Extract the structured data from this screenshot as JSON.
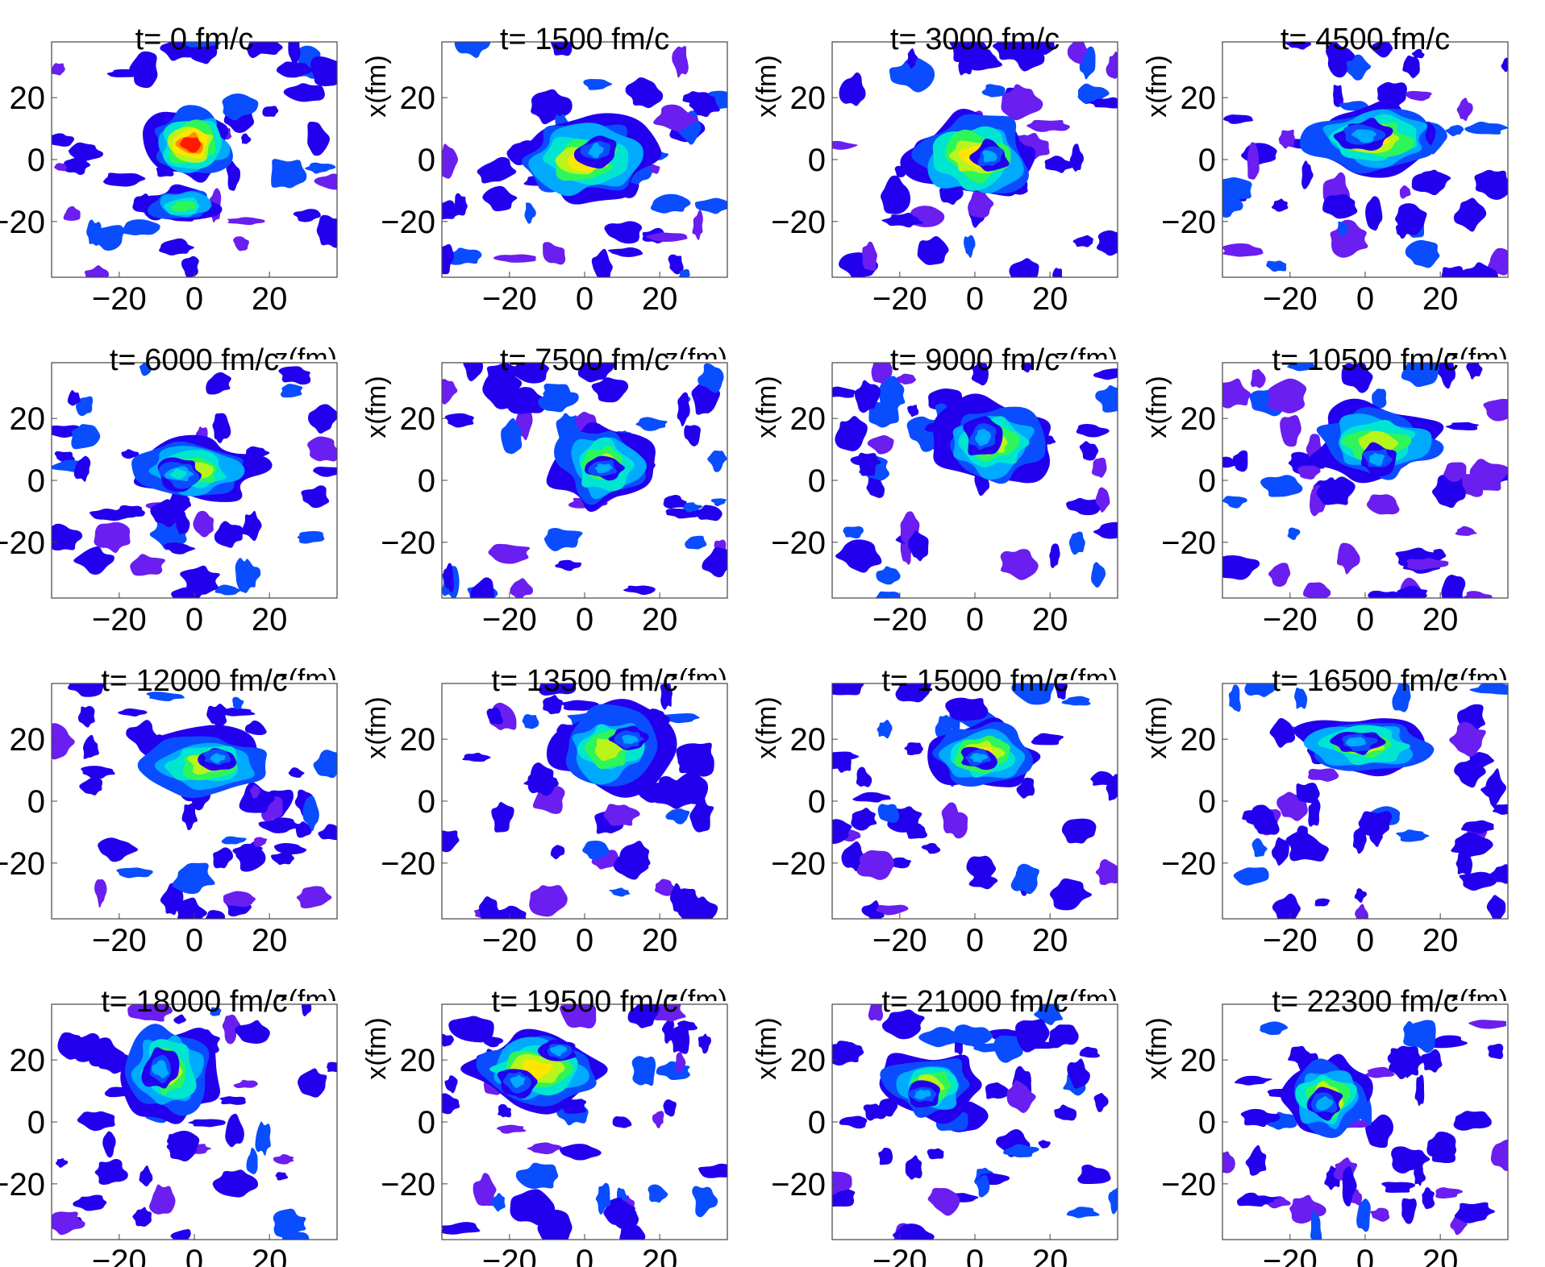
{
  "chart_data": {
    "type": "heatmap",
    "xlabel": "z(fm)",
    "ylabel": "x(fm)",
    "xlim": [
      -38,
      38
    ],
    "ylim": [
      -38,
      38
    ],
    "xticks": [
      "−20",
      "0",
      "20"
    ],
    "yticks": [
      "20",
      "0",
      "−20"
    ],
    "xtick_values": [
      -20,
      0,
      20
    ],
    "ytick_values": [
      20,
      0,
      -20
    ],
    "colormap": [
      "#2200ee",
      "#0a4dff",
      "#00aaff",
      "#00e5d0",
      "#2ef55a",
      "#b8f51a",
      "#ffe600",
      "#ff8c00",
      "#ff1a00"
    ],
    "panels": [
      {
        "title": "t= 0 fm/c",
        "blobs": [
          {
            "z": -1,
            "x": 5,
            "w": 9,
            "h": 9,
            "a": 1.0
          },
          {
            "z": -3,
            "x": -15,
            "w": 8,
            "h": 5,
            "a": 0.55
          }
        ]
      },
      {
        "title": "t= 1500 fm/c",
        "blobs": [
          {
            "z": 0,
            "x": 0,
            "w": 14,
            "h": 11,
            "a": 0.8
          },
          {
            "z": 3,
            "x": 3,
            "w": 4,
            "h": 4,
            "a": 0.3
          }
        ]
      },
      {
        "title": "t= 3000 fm/c",
        "blobs": [
          {
            "z": 0,
            "x": 1,
            "w": 13,
            "h": 12,
            "a": 0.8
          },
          {
            "z": 4,
            "x": 1,
            "w": 4,
            "h": 4,
            "a": 0.3
          }
        ]
      },
      {
        "title": "t= 4500 fm/c",
        "blobs": [
          {
            "z": 2,
            "x": 7,
            "w": 15,
            "h": 9,
            "a": 0.75
          },
          {
            "z": 0,
            "x": 8,
            "w": 6,
            "h": 4,
            "a": 0.3
          }
        ]
      },
      {
        "title": "t= 6000 fm/c",
        "blobs": [
          {
            "z": 0,
            "x": 3,
            "w": 14,
            "h": 8,
            "a": 0.65
          },
          {
            "z": -4,
            "x": 2,
            "w": 5,
            "h": 4,
            "a": 0.45
          }
        ]
      },
      {
        "title": "t= 7500 fm/c",
        "blobs": [
          {
            "z": 5,
            "x": 5,
            "w": 11,
            "h": 11,
            "a": 0.7
          },
          {
            "z": 5,
            "x": 4,
            "w": 4,
            "h": 3,
            "a": 0.35
          }
        ]
      },
      {
        "title": "t= 9000 fm/c",
        "blobs": [
          {
            "z": 5,
            "x": 12,
            "w": 12,
            "h": 11,
            "a": 0.7
          },
          {
            "z": 2,
            "x": 14,
            "w": 4,
            "h": 5,
            "a": 0.35
          }
        ]
      },
      {
        "title": "t= 10500 fm/c",
        "blobs": [
          {
            "z": 3,
            "x": 12,
            "w": 15,
            "h": 10,
            "a": 0.7
          },
          {
            "z": 3,
            "x": 7,
            "w": 4,
            "h": 4,
            "a": 0.35
          }
        ]
      },
      {
        "title": "t= 12000 fm/c",
        "blobs": [
          {
            "z": 3,
            "x": 12,
            "w": 14,
            "h": 9,
            "a": 0.7
          },
          {
            "z": 6,
            "x": 14,
            "w": 4,
            "h": 3,
            "a": 0.3
          }
        ]
      },
      {
        "title": "t= 13500 fm/c",
        "blobs": [
          {
            "z": 6,
            "x": 17,
            "w": 12,
            "h": 11,
            "a": 0.7
          },
          {
            "z": 12,
            "x": 20,
            "w": 4,
            "h": 3,
            "a": 0.35
          }
        ]
      },
      {
        "title": "t= 15000 fm/c",
        "blobs": [
          {
            "z": 2,
            "x": 15,
            "w": 11,
            "h": 9,
            "a": 0.75
          },
          {
            "z": 1,
            "x": 14,
            "w": 4,
            "h": 3,
            "a": 0.3
          }
        ]
      },
      {
        "title": "t= 16500 fm/c",
        "blobs": [
          {
            "z": 0,
            "x": 18,
            "w": 15,
            "h": 8,
            "a": 0.7
          },
          {
            "z": -2,
            "x": 19,
            "w": 5,
            "h": 3,
            "a": 0.3
          }
        ]
      },
      {
        "title": "t= 18000 fm/c",
        "blobs": [
          {
            "z": -7,
            "x": 16,
            "w": 10,
            "h": 13,
            "a": 0.7
          },
          {
            "z": -9,
            "x": 17,
            "w": 4,
            "h": 5,
            "a": 0.35
          }
        ]
      },
      {
        "title": "t= 19500 fm/c",
        "blobs": [
          {
            "z": -13,
            "x": 17,
            "w": 14,
            "h": 10,
            "a": 0.75
          },
          {
            "z": -18,
            "x": 13,
            "w": 4,
            "h": 4,
            "a": 0.3
          },
          {
            "z": -7,
            "x": 23,
            "w": 4,
            "h": 3,
            "a": 0.3
          }
        ]
      },
      {
        "title": "t= 21000 fm/c",
        "blobs": [
          {
            "z": -12,
            "x": 12,
            "w": 11,
            "h": 9,
            "a": 0.7
          },
          {
            "z": -14,
            "x": 9,
            "w": 4,
            "h": 3,
            "a": 0.3
          }
        ]
      },
      {
        "title": "t= 22300 fm/c",
        "blobs": [
          {
            "z": -10,
            "x": 8,
            "w": 9,
            "h": 10,
            "a": 0.75
          },
          {
            "z": -11,
            "x": 6,
            "w": 4,
            "h": 4,
            "a": 0.3
          }
        ]
      }
    ]
  }
}
